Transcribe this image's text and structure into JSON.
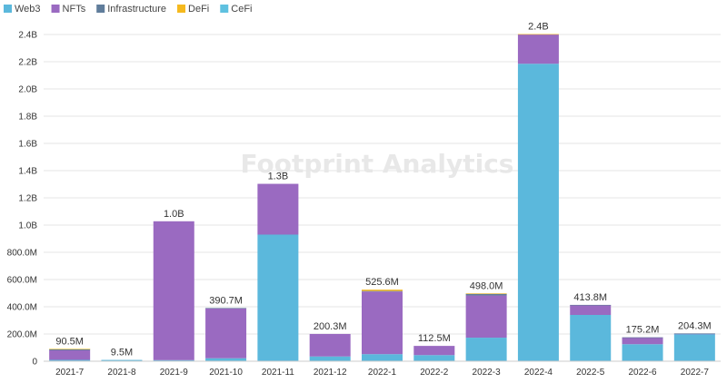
{
  "chart_data": {
    "type": "bar",
    "stacked": true,
    "title": "",
    "xlabel": "",
    "ylabel": "",
    "watermark": "Footprint Analytics",
    "legend_position": "top-left",
    "ylim": [
      0,
      2400000000
    ],
    "y_ticks": [
      {
        "value": 0,
        "label": "0"
      },
      {
        "value": 200000000,
        "label": "200.0M"
      },
      {
        "value": 400000000,
        "label": "400.0M"
      },
      {
        "value": 600000000,
        "label": "600.0M"
      },
      {
        "value": 800000000,
        "label": "800.0M"
      },
      {
        "value": 1000000000,
        "label": "1.0B"
      },
      {
        "value": 1200000000,
        "label": "1.2B"
      },
      {
        "value": 1400000000,
        "label": "1.4B"
      },
      {
        "value": 1600000000,
        "label": "1.6B"
      },
      {
        "value": 1800000000,
        "label": "1.8B"
      },
      {
        "value": 2000000000,
        "label": "2.0B"
      },
      {
        "value": 2200000000,
        "label": "2.2B"
      },
      {
        "value": 2400000000,
        "label": "2.4B"
      }
    ],
    "categories": [
      "2021-7",
      "2021-8",
      "2021-9",
      "2021-10",
      "2021-11",
      "2021-12",
      "2022-1",
      "2022-2",
      "2022-3",
      "2022-4",
      "2022-5",
      "2022-6",
      "2022-7"
    ],
    "totals": [
      "90.5M",
      "9.5M",
      "1.0B",
      "390.7M",
      "1.3B",
      "200.3M",
      "525.6M",
      "112.5M",
      "498.0M",
      "2.4B",
      "413.8M",
      "175.2M",
      "204.3M"
    ],
    "series": [
      {
        "name": "Web3",
        "color": "#5bb8dc",
        "values": [
          10000000,
          9500000,
          8000000,
          22000000,
          930000000,
          35000000,
          52000000,
          45000000,
          173000000,
          2185000000,
          340000000,
          125000000,
          200000000
        ]
      },
      {
        "name": "NFTs",
        "color": "#9a6ac1",
        "values": [
          70000000,
          0,
          1020000000,
          368000000,
          373000000,
          165300000,
          460000000,
          67500000,
          310000000,
          215000000,
          73000000,
          50000000,
          2000000
        ]
      },
      {
        "name": "Infrastructure",
        "color": "#607d9b",
        "values": [
          9000000,
          0,
          0,
          700000,
          0,
          0,
          4000000,
          0,
          13000000,
          0,
          800000,
          200000,
          2300000
        ]
      },
      {
        "name": "DeFi",
        "color": "#f5b91e",
        "values": [
          1500000,
          0,
          0,
          0,
          0,
          0,
          9600000,
          0,
          2000000,
          3000000,
          0,
          0,
          0
        ]
      },
      {
        "name": "CeFi",
        "color": "#5fc1e0",
        "values": [
          0,
          0,
          0,
          0,
          0,
          0,
          0,
          0,
          0,
          0,
          0,
          0,
          0
        ]
      }
    ]
  }
}
